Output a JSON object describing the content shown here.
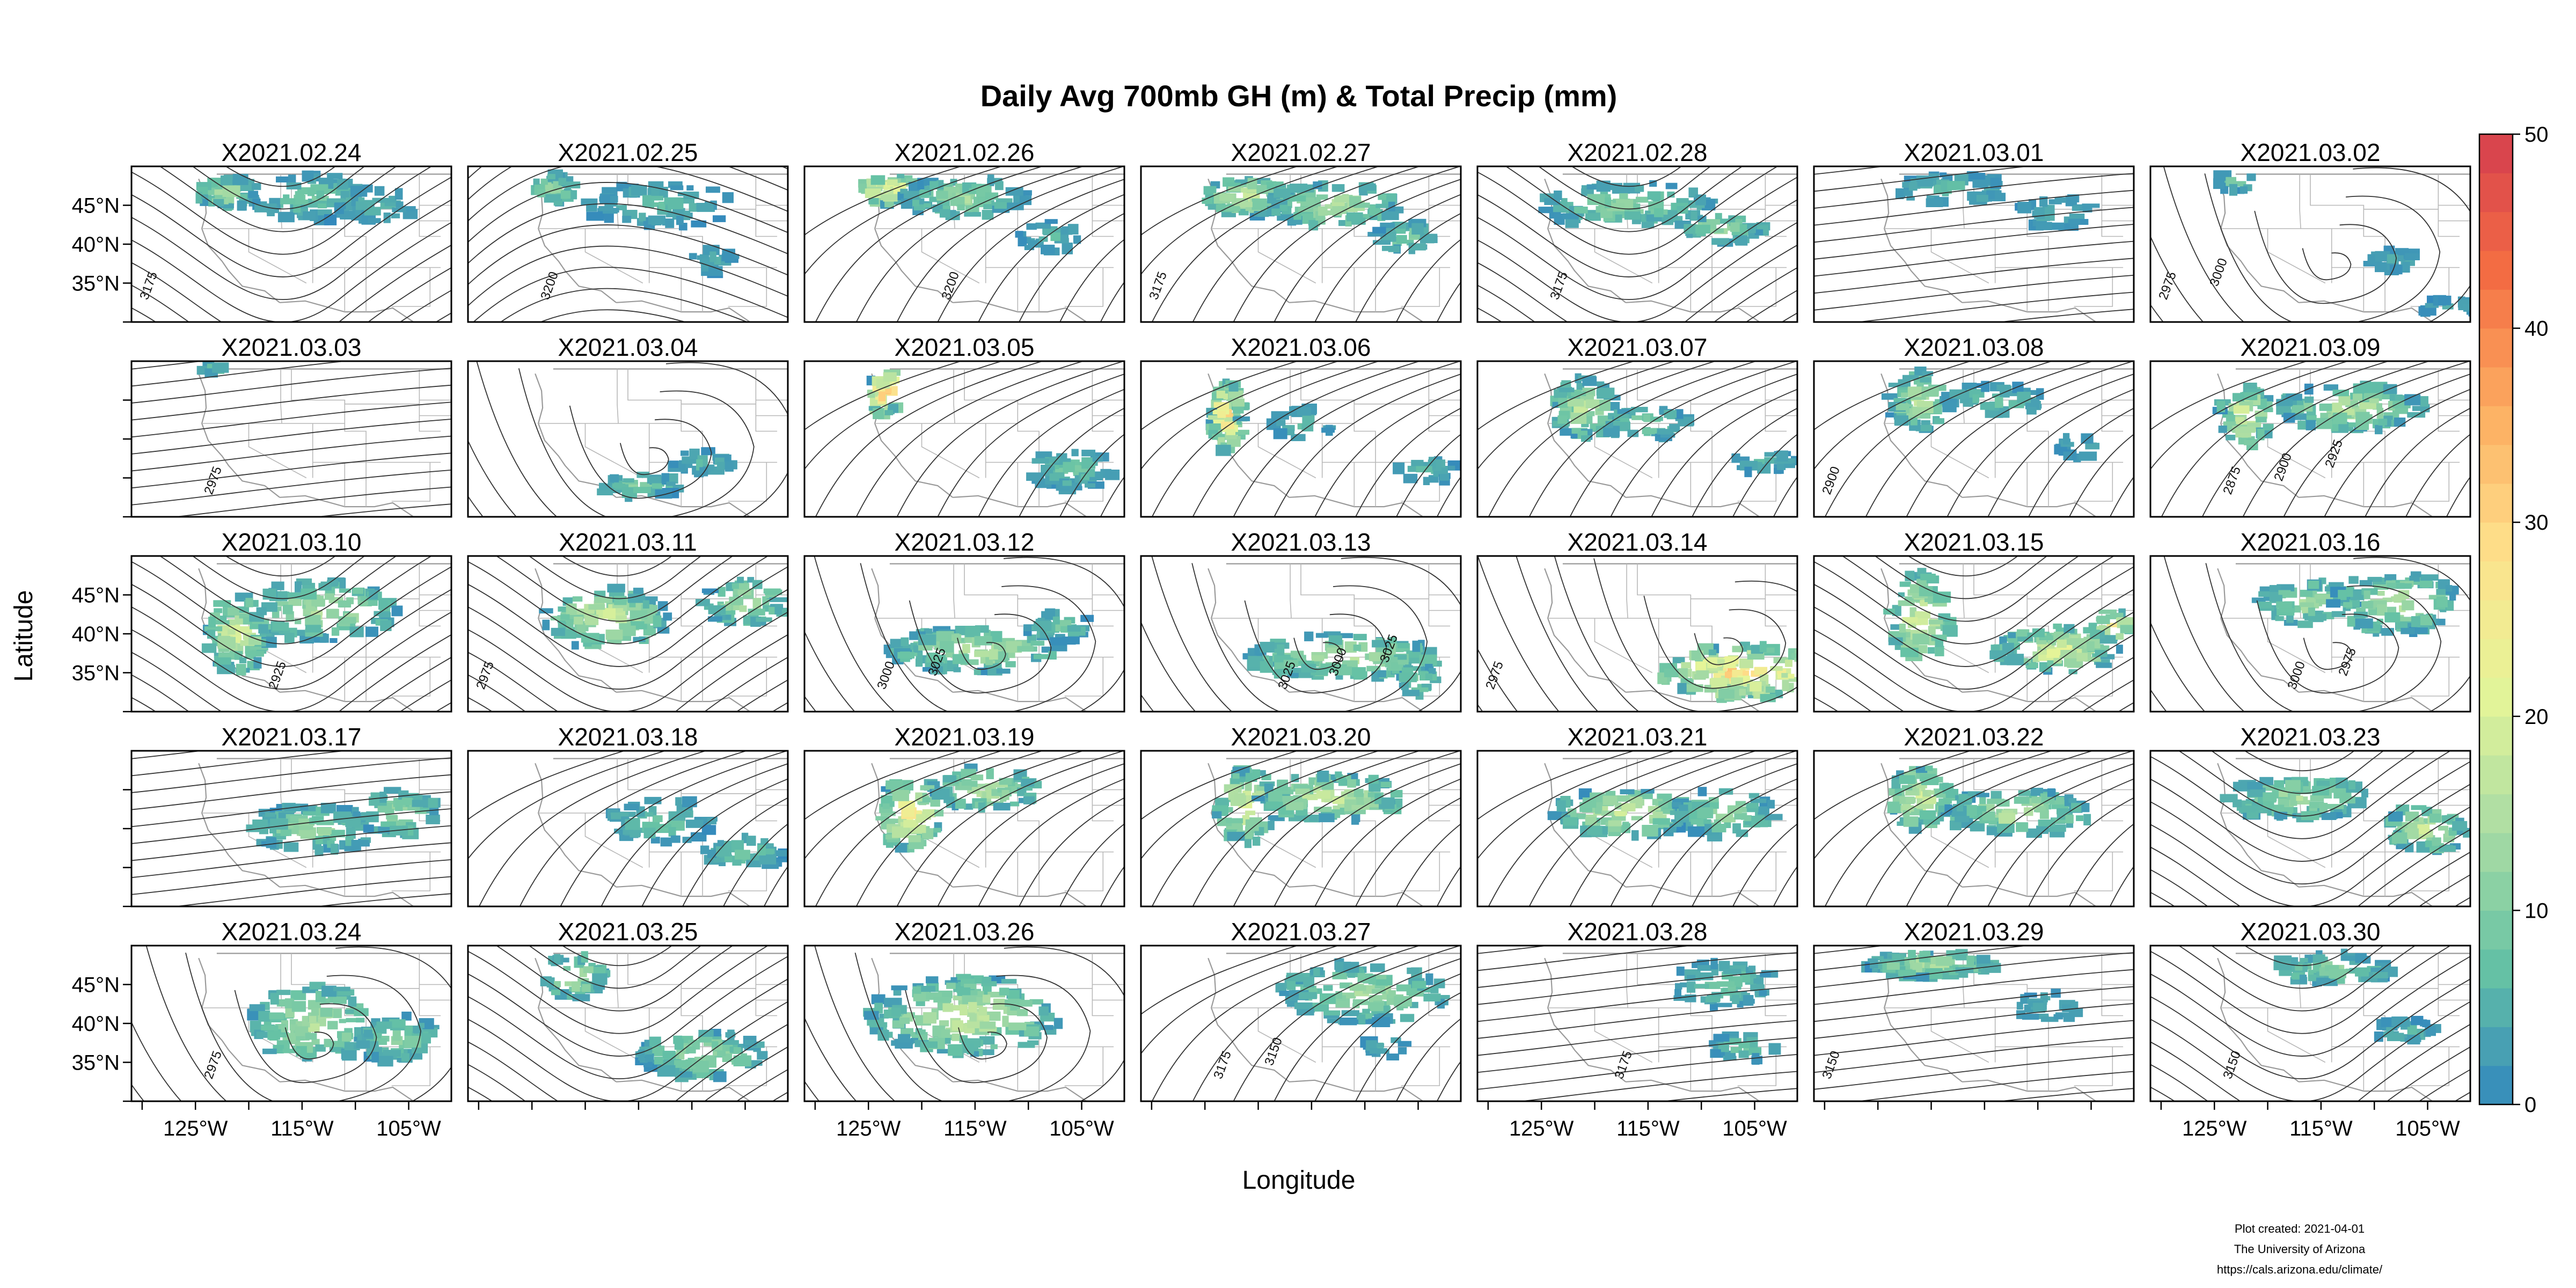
{
  "chart_data": {
    "type": "heatmap",
    "title": "Daily Avg 700mb GH (m) & Total Precip (mm)",
    "xlabel": "Longitude",
    "ylabel": "Latitude",
    "x_ticks": [
      "125°W",
      "115°W",
      "105°W"
    ],
    "x_tick_values": [
      -125,
      -115,
      -105
    ],
    "y_ticks": [
      "45°N",
      "40°N",
      "35°N"
    ],
    "y_tick_values": [
      45,
      40,
      35
    ],
    "xlim": [
      -131,
      -101
    ],
    "ylim": [
      30,
      50
    ],
    "colorbar": {
      "min": 0,
      "max": 50,
      "ticks": [
        0,
        10,
        20,
        30,
        40,
        50
      ],
      "colors": [
        "#3288bd",
        "#66c2a5",
        "#abdda4",
        "#e6f598",
        "#fee08b",
        "#fdae61",
        "#f46d43",
        "#d53e4f"
      ]
    },
    "panels": [
      {
        "label": "X2021.02.24",
        "contours": [
          "3175"
        ]
      },
      {
        "label": "X2021.02.25",
        "contours": [
          "3200"
        ]
      },
      {
        "label": "X2021.02.26",
        "contours": [
          "3200"
        ]
      },
      {
        "label": "X2021.02.27",
        "contours": [
          "3175"
        ]
      },
      {
        "label": "X2021.02.28",
        "contours": [
          "3175"
        ]
      },
      {
        "label": "X2021.03.01",
        "contours": []
      },
      {
        "label": "X2021.03.02",
        "contours": [
          "2975",
          "3000"
        ]
      },
      {
        "label": "X2021.03.03",
        "contours": [
          "2975"
        ]
      },
      {
        "label": "X2021.03.04",
        "contours": []
      },
      {
        "label": "X2021.03.05",
        "contours": []
      },
      {
        "label": "X2021.03.06",
        "contours": []
      },
      {
        "label": "X2021.03.07",
        "contours": []
      },
      {
        "label": "X2021.03.08",
        "contours": [
          "2900"
        ]
      },
      {
        "label": "X2021.03.09",
        "contours": [
          "2875",
          "2900",
          "2925"
        ]
      },
      {
        "label": "X2021.03.10",
        "contours": [
          "2925"
        ]
      },
      {
        "label": "X2021.03.11",
        "contours": [
          "2975"
        ]
      },
      {
        "label": "X2021.03.12",
        "contours": [
          "3000",
          "3025"
        ]
      },
      {
        "label": "X2021.03.13",
        "contours": [
          "3025",
          "3000",
          "3025"
        ]
      },
      {
        "label": "X2021.03.14",
        "contours": [
          "2975"
        ]
      },
      {
        "label": "X2021.03.15",
        "contours": []
      },
      {
        "label": "X2021.03.16",
        "contours": [
          "3000",
          "2975"
        ]
      },
      {
        "label": "X2021.03.17",
        "contours": []
      },
      {
        "label": "X2021.03.18",
        "contours": []
      },
      {
        "label": "X2021.03.19",
        "contours": []
      },
      {
        "label": "X2021.03.20",
        "contours": []
      },
      {
        "label": "X2021.03.21",
        "contours": []
      },
      {
        "label": "X2021.03.22",
        "contours": []
      },
      {
        "label": "X2021.03.23",
        "contours": []
      },
      {
        "label": "X2021.03.24",
        "contours": [
          "2975"
        ]
      },
      {
        "label": "X2021.03.25",
        "contours": []
      },
      {
        "label": "X2021.03.26",
        "contours": []
      },
      {
        "label": "X2021.03.27",
        "contours": [
          "3175",
          "3150"
        ]
      },
      {
        "label": "X2021.03.28",
        "contours": [
          "3175"
        ]
      },
      {
        "label": "X2021.03.29",
        "contours": [
          "3150"
        ]
      },
      {
        "label": "X2021.03.30",
        "contours": [
          "3150"
        ]
      }
    ]
  },
  "credits": {
    "line1": "Plot created: 2021-04-01",
    "line2": "The University of Arizona",
    "line3": "https://cals.arizona.edu/climate/"
  }
}
